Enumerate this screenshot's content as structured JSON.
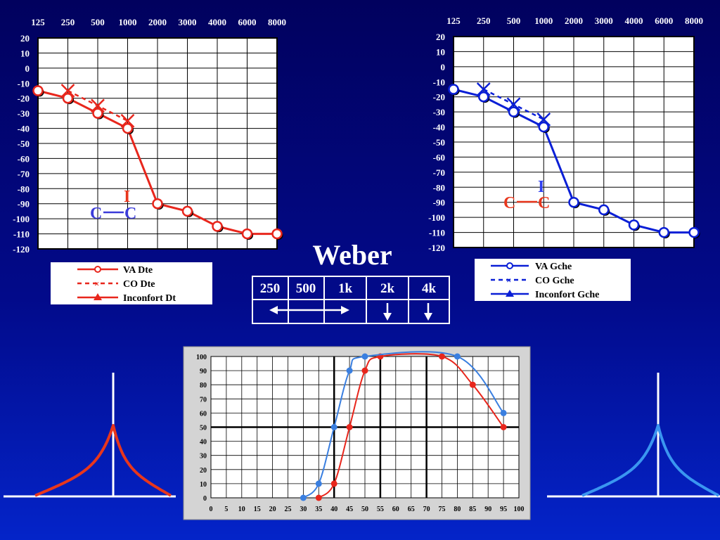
{
  "slide": {
    "title": "Weber",
    "colors": {
      "right_ear": "#e8261c",
      "left_ear": "#0a1fd6",
      "speech_red": "#e8261c",
      "speech_blue": "#3a7fe0",
      "tone_red": "#e8361c",
      "tone_blue": "#3a96f0"
    }
  },
  "weber_table": {
    "headers": [
      "250",
      "500",
      "1k",
      "2k",
      "4k"
    ],
    "lateralization": [
      {
        "columns": "250-1k",
        "symbol": "double-arrow-left-right"
      },
      {
        "columns": "2k",
        "symbol": "arrow-down"
      },
      {
        "columns": "4k",
        "symbol": "arrow-down"
      }
    ]
  },
  "chart_data": [
    {
      "type": "line",
      "name": "audiogram-right",
      "x": [
        "125",
        "250",
        "500",
        "1000",
        "2000",
        "3000",
        "4000",
        "6000",
        "8000"
      ],
      "yticks": [
        "20",
        "10",
        "0",
        "-10",
        "-20",
        "-30",
        "-40",
        "-50",
        "-60",
        "-70",
        "-80",
        "-90",
        "-100",
        "-110",
        "-120"
      ],
      "ylim": [
        -120,
        20
      ],
      "grid": true,
      "series": [
        {
          "name": "VA Dte",
          "style": "solid-circle",
          "values": [
            -15,
            -20,
            -30,
            -40,
            -90,
            -95,
            -105,
            -110,
            -110
          ]
        },
        {
          "name": "CO  Dte",
          "style": "dashed-x",
          "values": [
            null,
            -15,
            -25,
            -35,
            null,
            null,
            null,
            null,
            null
          ]
        },
        {
          "name": "Inconfort Dt",
          "style": "solid-triangle",
          "values": [
            null,
            null,
            null,
            null,
            null,
            null,
            null,
            null,
            null
          ]
        }
      ],
      "annotations": [
        {
          "text": "C",
          "color": "#3b3bd9"
        },
        {
          "text": "C",
          "color": "#3b3bd9"
        },
        {
          "text": "I",
          "color": "#e8361c"
        }
      ],
      "legend": [
        {
          "label": "VA Dte",
          "style": "solid-circle"
        },
        {
          "label": "CO  Dte",
          "style": "dashed-x"
        },
        {
          "label": "Inconfort Dt",
          "style": "solid-triangle"
        }
      ]
    },
    {
      "type": "line",
      "name": "audiogram-left",
      "x": [
        "125",
        "250",
        "500",
        "1000",
        "2000",
        "3000",
        "4000",
        "6000",
        "8000"
      ],
      "yticks": [
        "20",
        "10",
        "0",
        "-10",
        "-20",
        "-30",
        "-40",
        "-50",
        "-60",
        "-70",
        "-80",
        "-90",
        "-100",
        "-110",
        "-120"
      ],
      "ylim": [
        -120,
        20
      ],
      "grid": true,
      "series": [
        {
          "name": "VA Gche",
          "style": "solid-circle",
          "values": [
            -15,
            -20,
            -30,
            -40,
            -90,
            -95,
            -105,
            -110,
            -110
          ]
        },
        {
          "name": "CO Gche",
          "style": "dashed-x",
          "values": [
            null,
            -15,
            -25,
            -35,
            null,
            null,
            null,
            null,
            null
          ]
        },
        {
          "name": "Inconfort Gche",
          "style": "solid-triangle",
          "values": [
            null,
            null,
            null,
            null,
            null,
            null,
            null,
            null,
            null
          ]
        }
      ],
      "annotations": [
        {
          "text": "C",
          "color": "#e8361c"
        },
        {
          "text": "C",
          "color": "#e8361c"
        },
        {
          "text": "I",
          "color": "#2f3ff0"
        }
      ],
      "legend": [
        {
          "label": "VA Gche",
          "style": "solid-circle"
        },
        {
          "label": "CO Gche",
          "style": "dashed-x"
        },
        {
          "label": "Inconfort Gche",
          "style": "solid-triangle"
        }
      ]
    },
    {
      "type": "line",
      "name": "speech-audiogram",
      "xticks": [
        "0",
        "5",
        "10",
        "15",
        "20",
        "25",
        "30",
        "35",
        "40",
        "45",
        "50",
        "55",
        "60",
        "65",
        "70",
        "75",
        "80",
        "85",
        "90",
        "95",
        "100"
      ],
      "yticks": [
        "0",
        "10",
        "20",
        "30",
        "40",
        "50",
        "60",
        "70",
        "80",
        "90",
        "100"
      ],
      "xlim": [
        0,
        100
      ],
      "ylim": [
        0,
        100
      ],
      "grid": true,
      "series": [
        {
          "color": "red",
          "x": [
            35,
            40,
            45,
            50,
            55,
            75,
            85,
            95
          ],
          "y": [
            0,
            10,
            50,
            90,
            100,
            100,
            80,
            50
          ]
        },
        {
          "color": "blue",
          "x": [
            30,
            35,
            40,
            45,
            50,
            80,
            95
          ],
          "y": [
            0,
            10,
            50,
            90,
            100,
            100,
            60
          ]
        }
      ]
    },
    {
      "type": "line",
      "name": "tone-curve-left",
      "color": "red",
      "x": [
        0,
        0.5,
        1
      ],
      "y": [
        0,
        1,
        0
      ]
    },
    {
      "type": "line",
      "name": "tone-curve-right",
      "color": "blue",
      "x": [
        0,
        0.5,
        1
      ],
      "y": [
        0,
        1,
        0
      ]
    }
  ]
}
